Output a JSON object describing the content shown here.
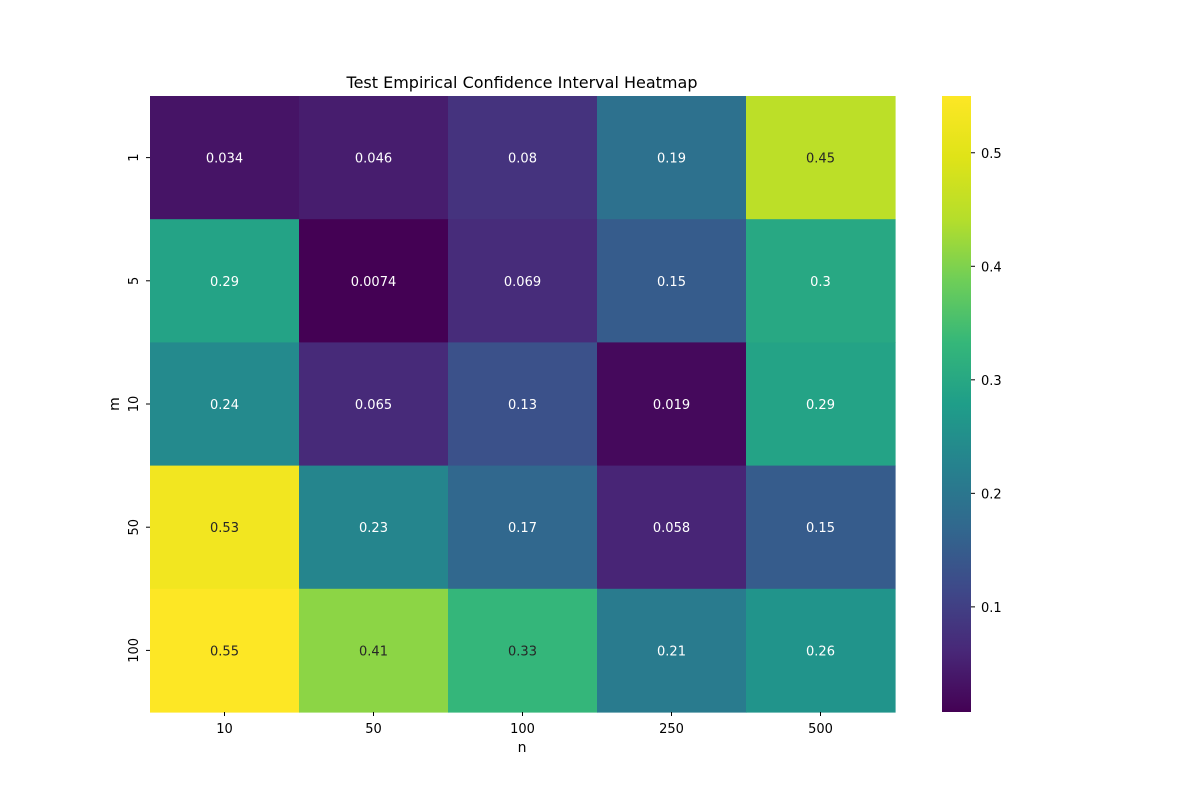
{
  "chart_data": {
    "type": "heatmap",
    "title": "Test Empirical Confidence Interval Heatmap",
    "xlabel": "n",
    "ylabel": "m",
    "x_categories": [
      "10",
      "50",
      "100",
      "250",
      "500"
    ],
    "y_categories": [
      "1",
      "5",
      "10",
      "50",
      "100"
    ],
    "values": [
      [
        0.034,
        0.046,
        0.08,
        0.19,
        0.45
      ],
      [
        0.29,
        0.0074,
        0.069,
        0.15,
        0.3
      ],
      [
        0.24,
        0.065,
        0.13,
        0.019,
        0.29
      ],
      [
        0.53,
        0.23,
        0.17,
        0.058,
        0.15
      ],
      [
        0.55,
        0.41,
        0.33,
        0.21,
        0.26
      ]
    ],
    "cell_labels": [
      [
        "0.034",
        "0.046",
        "0.08",
        "0.19",
        "0.45"
      ],
      [
        "0.29",
        "0.0074",
        "0.069",
        "0.15",
        "0.3"
      ],
      [
        "0.24",
        "0.065",
        "0.13",
        "0.019",
        "0.29"
      ],
      [
        "0.53",
        "0.23",
        "0.17",
        "0.058",
        "0.15"
      ],
      [
        "0.55",
        "0.41",
        "0.33",
        "0.21",
        "0.26"
      ]
    ],
    "colormap": "viridis",
    "color_range": [
      0.0074,
      0.55
    ],
    "colorbar_ticks": [
      0.1,
      0.2,
      0.3,
      0.4,
      0.5
    ],
    "colorbar_tick_labels": [
      "0.1",
      "0.2",
      "0.3",
      "0.4",
      "0.5"
    ],
    "grid": false,
    "legend": "colorbar-right"
  }
}
